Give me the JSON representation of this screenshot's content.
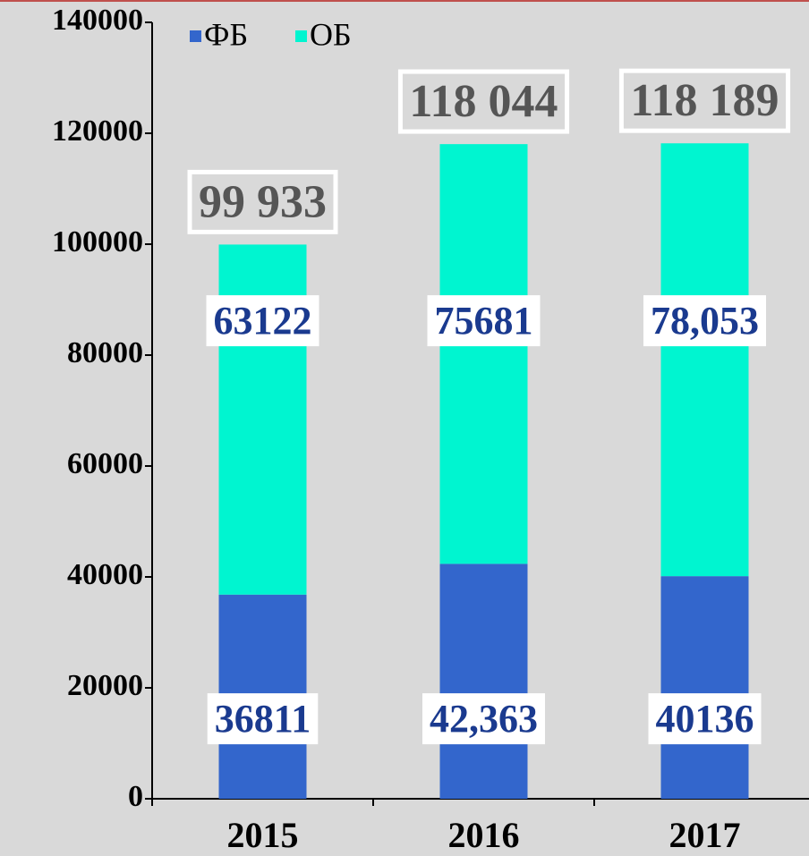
{
  "chart_data": {
    "type": "bar",
    "stacked": true,
    "categories": [
      "2015",
      "2016",
      "2017"
    ],
    "series": [
      {
        "name": "ФБ",
        "color": "#3366cc",
        "values": [
          36811,
          42363,
          40136
        ],
        "value_labels": [
          "36811",
          "42,363",
          "40136"
        ]
      },
      {
        "name": "ОБ",
        "color": "#00f5d0",
        "values": [
          63122,
          75681,
          78053
        ],
        "value_labels": [
          "63122",
          "75681",
          "78,053"
        ]
      }
    ],
    "total_labels": [
      "99 933",
      "118 044",
      "118 189"
    ],
    "ylim": [
      0,
      140000
    ],
    "yticks": [
      0,
      20000,
      40000,
      60000,
      80000,
      100000,
      120000,
      140000
    ],
    "legend": "top"
  }
}
